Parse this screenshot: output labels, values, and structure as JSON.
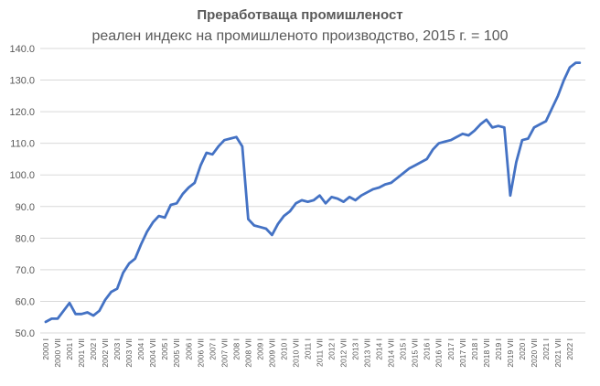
{
  "chart_data": {
    "type": "line",
    "title": "Преработваща промишленост",
    "subtitle": "реален индекс на промишленото производство, 2015 г. = 100",
    "xlabel": "",
    "ylabel": "",
    "ylim": [
      50,
      140
    ],
    "yticks": [
      "50.0",
      "60.0",
      "70.0",
      "80.0",
      "90.0",
      "100.0",
      "110.0",
      "120.0",
      "130.0",
      "140.0"
    ],
    "xticks": [
      "2000 I",
      "2000 VII",
      "2001 I",
      "2001 VII",
      "2002 I",
      "2002 VII",
      "2003 I",
      "2003 VII",
      "2004 I",
      "2004 VII",
      "2005 I",
      "2005 VII",
      "2006 I",
      "2006 VII",
      "2007 I",
      "2007 VII",
      "2008 I",
      "2008 VII",
      "2009 I",
      "2009 VII",
      "2010 I",
      "2010 VII",
      "2011 I",
      "2011 VII",
      "2012 I",
      "2012 VII",
      "2013 I",
      "2013 VII",
      "2014 I",
      "2014 VII",
      "2015 I",
      "2015 VII",
      "2016 I",
      "2016 VII",
      "2017 I",
      "2017 VII",
      "2018 I",
      "2018 VII",
      "2019 I",
      "2019 VII",
      "2020 I",
      "2020 VII",
      "2021 I",
      "2021 VII",
      "2022 I"
    ],
    "grid": true,
    "line_color": "#4472c4",
    "series": [
      {
        "x": [
          "2000-01",
          "2000-04",
          "2000-07",
          "2000-10",
          "2001-01",
          "2001-04",
          "2001-07",
          "2001-10",
          "2002-01",
          "2002-04",
          "2002-07",
          "2002-10",
          "2003-01",
          "2003-04",
          "2003-07",
          "2003-10",
          "2004-01",
          "2004-04",
          "2004-07",
          "2004-10",
          "2005-01",
          "2005-04",
          "2005-07",
          "2005-10",
          "2006-01",
          "2006-04",
          "2006-07",
          "2006-10",
          "2007-01",
          "2007-04",
          "2007-07",
          "2007-10",
          "2008-01",
          "2008-04",
          "2008-07",
          "2008-10",
          "2009-01",
          "2009-04",
          "2009-07",
          "2009-10",
          "2010-01",
          "2010-04",
          "2010-07",
          "2010-10",
          "2011-01",
          "2011-04",
          "2011-07",
          "2011-10",
          "2012-01",
          "2012-04",
          "2012-07",
          "2012-10",
          "2013-01",
          "2013-04",
          "2013-07",
          "2013-10",
          "2014-01",
          "2014-04",
          "2014-07",
          "2014-10",
          "2015-01",
          "2015-04",
          "2015-07",
          "2015-10",
          "2016-01",
          "2016-04",
          "2016-07",
          "2016-10",
          "2017-01",
          "2017-04",
          "2017-07",
          "2017-10",
          "2018-01",
          "2018-04",
          "2018-07",
          "2018-10",
          "2019-01",
          "2019-04",
          "2019-07",
          "2019-10",
          "2020-01",
          "2020-04",
          "2020-07",
          "2020-10",
          "2021-01",
          "2021-04",
          "2021-07",
          "2021-10",
          "2022-01",
          "2022-04",
          "2022-06"
        ],
        "values": [
          53.5,
          54.5,
          54.5,
          57.0,
          59.5,
          56.0,
          56.0,
          56.5,
          55.5,
          57.0,
          60.5,
          63.0,
          64.0,
          69.0,
          72.0,
          73.5,
          78.0,
          82.0,
          85.0,
          87.0,
          86.5,
          90.5,
          91.0,
          94.0,
          96.0,
          97.5,
          103.0,
          107.0,
          106.5,
          109.0,
          111.0,
          111.5,
          112.0,
          109.0,
          86.0,
          84.0,
          83.5,
          83.0,
          81.0,
          84.5,
          87.0,
          88.5,
          91.0,
          92.0,
          91.5,
          92.0,
          93.5,
          91.0,
          93.0,
          92.5,
          91.5,
          93.0,
          92.0,
          93.5,
          94.5,
          95.5,
          96.0,
          97.0,
          97.5,
          99.0,
          100.5,
          102.0,
          103.0,
          104.0,
          105.0,
          108.0,
          110.0,
          110.5,
          111.0,
          112.0,
          113.0,
          112.5,
          114.0,
          116.0,
          117.5,
          115.0,
          115.5,
          115.0,
          93.5,
          104.0,
          111.0,
          111.5,
          115.0,
          116.0,
          117.0,
          121.0,
          125.0,
          130.0,
          134.0,
          135.5,
          135.5
        ]
      }
    ]
  }
}
